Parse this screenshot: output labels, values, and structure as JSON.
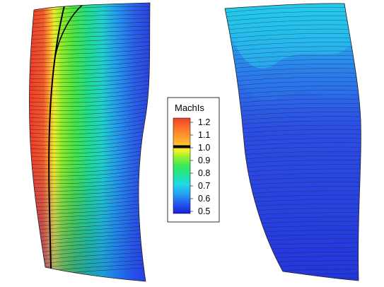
{
  "legend": {
    "title": "MachIs",
    "levels": [
      {
        "value": "1.2",
        "color": "#f23a22"
      },
      {
        "value": "1.1",
        "color": "#ffa23a"
      },
      {
        "value": "1.0",
        "color": "#000000"
      },
      {
        "value": "0.9",
        "color": "#5fe82a"
      },
      {
        "value": "0.8",
        "color": "#28e07a"
      },
      {
        "value": "0.7",
        "color": "#1ec6e6"
      },
      {
        "value": "0.6",
        "color": "#2a7cf0"
      },
      {
        "value": "0.5",
        "color": "#1f2fe0"
      }
    ],
    "gradient": [
      "#1b1fd6",
      "#2458f0",
      "#239ef2",
      "#22d7e8",
      "#21e39d",
      "#3ae858",
      "#9ef22a",
      "#f5f22a",
      "#ffb22f",
      "#ff7a2a",
      "#f0402a"
    ]
  },
  "colors": {
    "isoline": "#1b1b1b",
    "sonic_line": "#000000",
    "suction_side_base": "#2e3fe0",
    "pressure_side_base": "#2436dc"
  }
}
